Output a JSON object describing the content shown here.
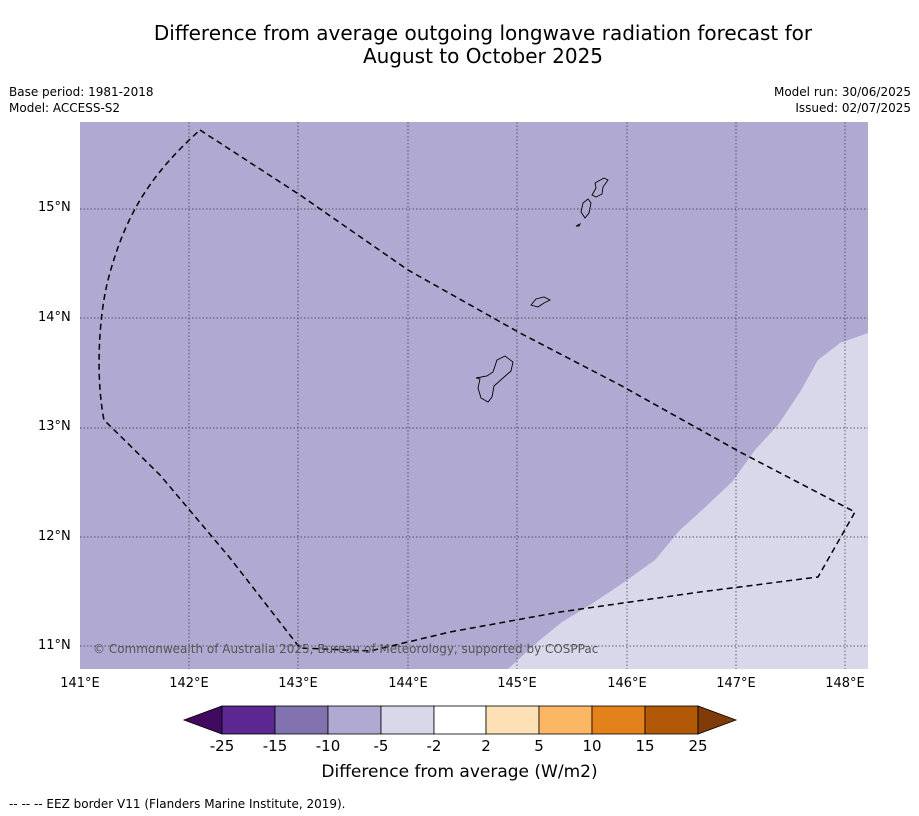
{
  "title_line1": "Difference from average outgoing longwave radiation forecast for",
  "title_line2": "August to October 2025",
  "base_period": "Base period: 1981-2018",
  "model": "Model: ACCESS-S2",
  "model_run": "Model run: 30/06/2025",
  "issued": "Issued: 02/07/2025",
  "copyright": "© Commonwealth of Australia 2025, Bureau of Meteorology, supported by COSPPac",
  "lat_ticks": [
    "15°N",
    "14°N",
    "13°N",
    "12°N",
    "11°N"
  ],
  "lon_ticks": [
    "141°E",
    "142°E",
    "143°E",
    "144°E",
    "145°E",
    "146°E",
    "147°E",
    "148°E"
  ],
  "colorbar": {
    "labels": [
      "-25",
      "-15",
      "-10",
      "-5",
      "-2",
      "2",
      "5",
      "10",
      "15",
      "25"
    ],
    "colors": [
      "#3f0a5f",
      "#5c2791",
      "#8273b0",
      "#b0aad2",
      "#d9d8ea",
      "#ffffff",
      "#fde0b5",
      "#fdb663",
      "#e3821a",
      "#b35806",
      "#7f3b08"
    ],
    "title": "Difference from average (W/m2)"
  },
  "map_colors": {
    "minus_10_to_5": "#b0aad2",
    "minus_5_to_2": "#d9d8ea"
  },
  "footnote": "-- -- -- EEZ border V11 (Flanders Marine Institute, 2019)."
}
